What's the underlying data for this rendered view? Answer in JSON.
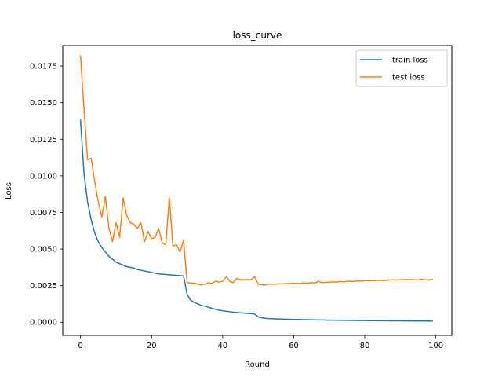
{
  "chart_data": {
    "type": "line",
    "title": "loss_curve",
    "xlabel": "Round",
    "ylabel": "Loss",
    "xlim": [
      -5,
      104.5
    ],
    "ylim": [
      -0.0009,
      0.0189
    ],
    "xticks": [
      0,
      20,
      40,
      60,
      80,
      100
    ],
    "xtick_labels": [
      "0",
      "20",
      "40",
      "60",
      "80",
      "100"
    ],
    "yticks": [
      0.0,
      0.0025,
      0.005,
      0.0075,
      0.01,
      0.0125,
      0.015,
      0.0175
    ],
    "ytick_labels": [
      "0.0000",
      "0.0025",
      "0.0050",
      "0.0075",
      "0.0100",
      "0.0125",
      "0.0150",
      "0.0175"
    ],
    "grid": false,
    "legend_position": "upper right",
    "series": [
      {
        "name": "train loss",
        "color": "#1f77b4",
        "x": [
          0,
          1,
          2,
          3,
          4,
          5,
          6,
          7,
          8,
          9,
          10,
          11,
          12,
          13,
          14,
          15,
          16,
          17,
          18,
          19,
          20,
          21,
          22,
          23,
          24,
          25,
          26,
          27,
          28,
          29,
          30,
          31,
          32,
          33,
          34,
          35,
          36,
          37,
          38,
          39,
          40,
          41,
          42,
          43,
          44,
          45,
          46,
          47,
          48,
          49,
          50,
          51,
          52,
          53,
          54,
          55,
          56,
          57,
          58,
          59,
          60,
          61,
          62,
          63,
          64,
          65,
          66,
          67,
          68,
          69,
          70,
          71,
          72,
          73,
          74,
          75,
          76,
          77,
          78,
          79,
          80,
          81,
          82,
          83,
          84,
          85,
          86,
          87,
          88,
          89,
          90,
          91,
          92,
          93,
          94,
          95,
          96,
          97,
          98,
          99
        ],
        "y": [
          0.0138,
          0.0101,
          0.0082,
          0.007,
          0.0061,
          0.0055,
          0.0051,
          0.0048,
          0.0045,
          0.0043,
          0.0041,
          0.004,
          0.0039,
          0.0038,
          0.00375,
          0.0037,
          0.0036,
          0.00355,
          0.0035,
          0.00345,
          0.0034,
          0.00335,
          0.0033,
          0.00328,
          0.00326,
          0.00324,
          0.00322,
          0.0032,
          0.00318,
          0.00316,
          0.0019,
          0.0015,
          0.00135,
          0.00125,
          0.00115,
          0.0011,
          0.00102,
          0.00095,
          0.00088,
          0.00082,
          0.00078,
          0.00075,
          0.00072,
          0.00068,
          0.00066,
          0.00064,
          0.00062,
          0.0006,
          0.00058,
          0.00056,
          0.00036,
          0.0003,
          0.00027,
          0.00025,
          0.00024,
          0.00023,
          0.00022,
          0.00021,
          0.0002,
          0.000195,
          0.00019,
          0.000185,
          0.00018,
          0.000175,
          0.00017,
          0.000165,
          0.00016,
          0.000155,
          0.00015,
          0.000146,
          0.000142,
          0.000138,
          0.000134,
          0.00013,
          0.000127,
          0.000124,
          0.000121,
          0.000118,
          0.000115,
          0.000112,
          0.00011,
          0.000108,
          0.000106,
          0.000104,
          0.000102,
          0.0001,
          9.8e-05,
          9.6e-05,
          9.4e-05,
          9.2e-05,
          9e-05,
          8.8e-05,
          8.6e-05,
          8.4e-05,
          8.2e-05,
          8e-05,
          7.9e-05,
          7.8e-05,
          7.7e-05,
          7.6e-05
        ]
      },
      {
        "name": "test loss",
        "color": "#ff7f0e",
        "x": [
          0,
          1,
          2,
          3,
          4,
          5,
          6,
          7,
          8,
          9,
          10,
          11,
          12,
          13,
          14,
          15,
          16,
          17,
          18,
          19,
          20,
          21,
          22,
          23,
          24,
          25,
          26,
          27,
          28,
          29,
          30,
          31,
          32,
          33,
          34,
          35,
          36,
          37,
          38,
          39,
          40,
          41,
          42,
          43,
          44,
          45,
          46,
          47,
          48,
          49,
          50,
          51,
          52,
          53,
          54,
          55,
          56,
          57,
          58,
          59,
          60,
          61,
          62,
          63,
          64,
          65,
          66,
          67,
          68,
          69,
          70,
          71,
          72,
          73,
          74,
          75,
          76,
          77,
          78,
          79,
          80,
          81,
          82,
          83,
          84,
          85,
          86,
          87,
          88,
          89,
          90,
          91,
          92,
          93,
          94,
          95,
          96,
          97,
          98,
          99
        ],
        "y": [
          0.0182,
          0.0145,
          0.0111,
          0.0112,
          0.0096,
          0.0082,
          0.0072,
          0.0086,
          0.0064,
          0.0055,
          0.0068,
          0.0058,
          0.0085,
          0.0073,
          0.0068,
          0.0067,
          0.0064,
          0.0068,
          0.0055,
          0.0062,
          0.0057,
          0.0058,
          0.0064,
          0.0054,
          0.0053,
          0.0085,
          0.0052,
          0.0053,
          0.0048,
          0.0056,
          0.0027,
          0.00268,
          0.00266,
          0.0026,
          0.00255,
          0.0026,
          0.0027,
          0.00265,
          0.0028,
          0.00275,
          0.0028,
          0.0031,
          0.0028,
          0.0027,
          0.003,
          0.0029,
          0.0029,
          0.0029,
          0.0029,
          0.0031,
          0.0026,
          0.00255,
          0.00255,
          0.0026,
          0.0026,
          0.0026,
          0.00262,
          0.00262,
          0.00264,
          0.00264,
          0.00266,
          0.00264,
          0.00266,
          0.00268,
          0.00266,
          0.0027,
          0.00268,
          0.0028,
          0.0027,
          0.00272,
          0.00272,
          0.00276,
          0.00274,
          0.00278,
          0.00276,
          0.00278,
          0.0028,
          0.00278,
          0.00282,
          0.0028,
          0.00284,
          0.00282,
          0.00284,
          0.00283,
          0.00286,
          0.00284,
          0.00286,
          0.00288,
          0.0029,
          0.00288,
          0.0029,
          0.0029,
          0.00292,
          0.0029,
          0.0029,
          0.00288,
          0.00294,
          0.0029,
          0.00288,
          0.00293
        ]
      }
    ]
  }
}
